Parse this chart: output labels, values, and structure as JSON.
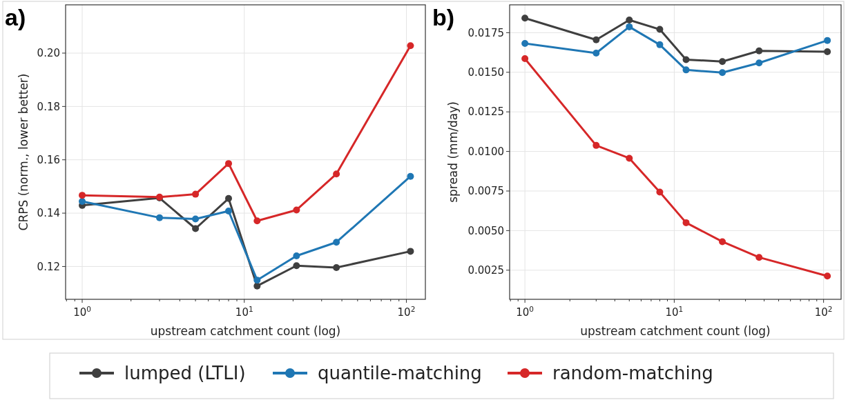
{
  "chart_data": [
    {
      "type": "line",
      "title": "a)",
      "xlabel": "upstream catchment count (log)",
      "ylabel": "CRPS (norm., lower better)",
      "log": "x",
      "x": [
        1,
        3,
        5,
        8,
        12,
        21,
        37,
        106
      ],
      "xlim": [
        0.79,
        131
      ],
      "xticks": [
        {
          "value": 1,
          "label": "10$^{0}$"
        },
        {
          "value": 10,
          "label": "10$^{1}$"
        },
        {
          "value": 100,
          "label": "10$^{2}$"
        }
      ],
      "ylim": [
        0.1077,
        0.2181
      ],
      "yticks": [
        0.12,
        0.14,
        0.16,
        0.18,
        {
          "value": 0.2,
          "label": "0.20"
        }
      ],
      "grid": true,
      "marker": "circle",
      "legend": "bottom",
      "series": [
        {
          "name": "lumped (LTLI)",
          "color": "#3f3f3f",
          "values": [
            0.1429,
            0.1457,
            0.1342,
            0.1455,
            0.1127,
            0.1203,
            0.1196,
            0.1257
          ]
        },
        {
          "name": "quantile-matching",
          "color": "#1f77b4",
          "values": [
            0.1444,
            0.1383,
            0.1378,
            0.1408,
            0.1149,
            0.124,
            0.1291,
            0.1538
          ]
        },
        {
          "name": "random-matching",
          "color": "#d62728",
          "values": [
            0.1467,
            0.146,
            0.1471,
            0.1586,
            0.1371,
            0.1412,
            0.1547,
            0.2028
          ]
        }
      ]
    },
    {
      "type": "line",
      "title": "b)",
      "xlabel": "upstream catchment count (log)",
      "ylabel": "spread (mm/day)",
      "log": "x",
      "x": [
        1,
        3,
        5,
        8,
        12,
        21,
        37,
        106
      ],
      "xlim": [
        0.79,
        131
      ],
      "xticks": [
        {
          "value": 1,
          "label": "10$^{0}$"
        },
        {
          "value": 10,
          "label": "10$^{1}$"
        },
        {
          "value": 100,
          "label": "10$^{2}$"
        }
      ],
      "ylim": [
        0.00066,
        0.01926
      ],
      "yticks": [
        {
          "value": 0.0025,
          "label": "0.0025"
        },
        {
          "value": 0.005,
          "label": "0.0050"
        },
        {
          "value": 0.0075,
          "label": "0.0075"
        },
        {
          "value": 0.01,
          "label": "0.0100"
        },
        {
          "value": 0.0125,
          "label": "0.0125"
        },
        {
          "value": 0.015,
          "label": "0.0150"
        },
        {
          "value": 0.0175,
          "label": "0.0175"
        }
      ],
      "grid": true,
      "marker": "circle",
      "series": [
        {
          "color": "#3f3f3f",
          "values": [
            0.01842,
            0.01705,
            0.0183,
            0.01771,
            0.0158,
            0.01568,
            0.01635,
            0.0163
          ]
        },
        {
          "color": "#1f77b4",
          "values": [
            0.01682,
            0.01621,
            0.01787,
            0.01674,
            0.01515,
            0.01498,
            0.01559,
            0.01701
          ]
        },
        {
          "color": "#d62728",
          "values": [
            0.01586,
            0.01038,
            0.00957,
            0.00743,
            0.0055,
            0.0043,
            0.00331,
            0.00213
          ]
        }
      ]
    }
  ]
}
